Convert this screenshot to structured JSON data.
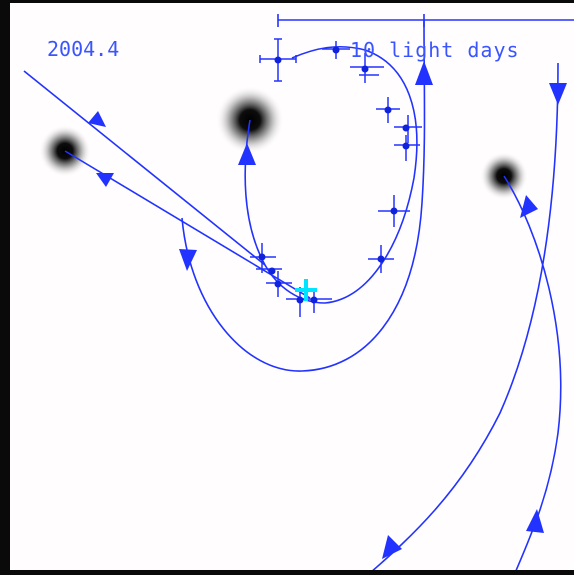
{
  "epoch_label": "2004.4",
  "scale_label": "10 light days",
  "colors": {
    "orbit": "#2233ff",
    "label": "#3a55ff",
    "background": "#fffdfd",
    "frame": "#0a0a0a",
    "current_position": "#00e5ff"
  },
  "markers": {
    "current_position": "cross",
    "star": "blurred-black-disc"
  }
}
